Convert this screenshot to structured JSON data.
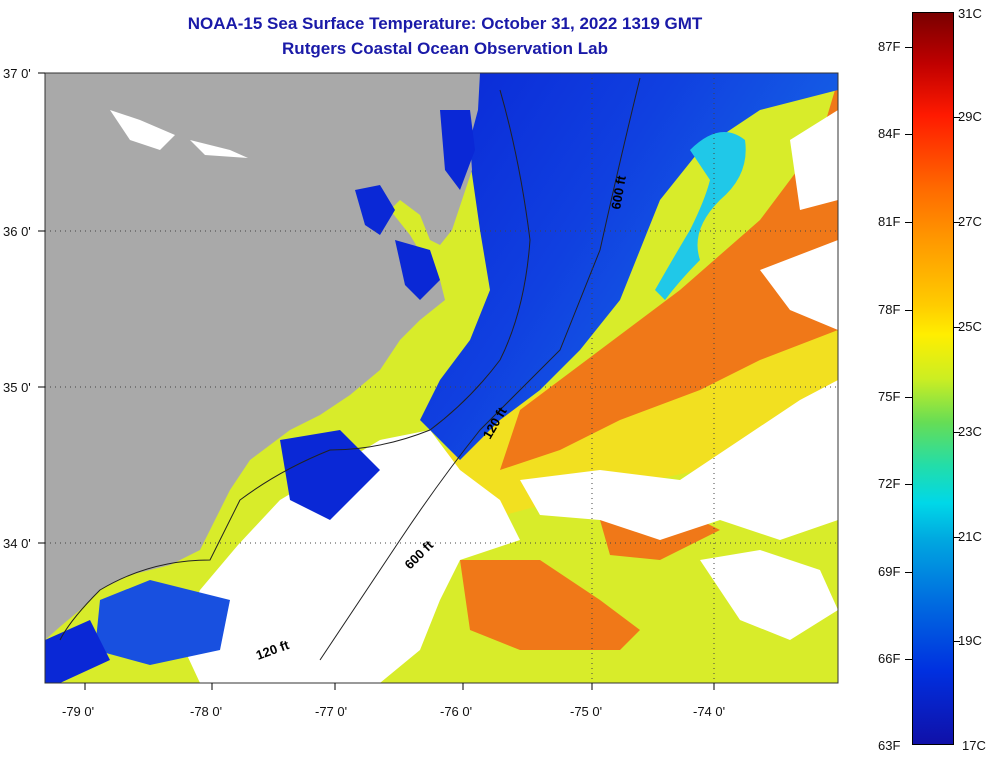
{
  "title_line1": "NOAA-15 Sea Surface Temperature:  October 31, 2022 1319 GMT",
  "title_line2": "Rutgers Coastal Ocean Observation Lab",
  "lat_labels": [
    "37 0'",
    "36 0'",
    "35 0'",
    "34 0'"
  ],
  "lon_labels": [
    "-79 0'",
    "-78 0'",
    "-77 0'",
    "-76 0'",
    "-75 0'",
    "-74 0'"
  ],
  "contour_labels": [
    "600 ft",
    "120 ft",
    "600 ft",
    "120 ft"
  ],
  "colorbar": {
    "f_labels": [
      "87F",
      "84F",
      "81F",
      "78F",
      "75F",
      "72F",
      "69F",
      "66F",
      "63F"
    ],
    "c_labels": [
      "31C",
      "29C",
      "27C",
      "25C",
      "23C",
      "21C",
      "19C",
      "17C"
    ]
  },
  "colors": {
    "land": "#a9a9a9",
    "cloud": "#ffffff",
    "cold_shelf": "#0a28d6",
    "gulf_stream": "#f07818",
    "warm_yellow": "#d8ec2a",
    "title": "#1a1aa8"
  }
}
